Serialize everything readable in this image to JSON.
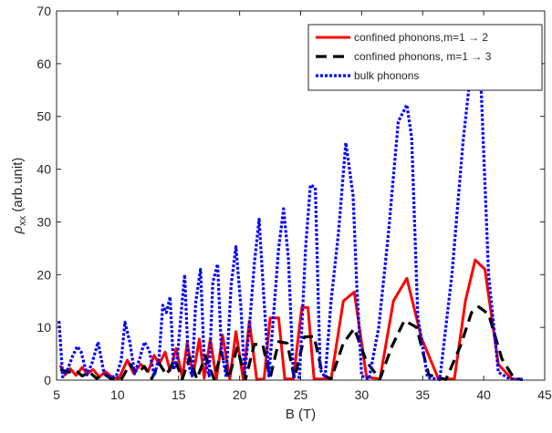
{
  "chart_data": {
    "type": "line",
    "xlabel": "B (T)",
    "ylabel": {
      "symbol": "ρ",
      "sub": "xx",
      "rest": " (arb.unit)"
    },
    "xlim": [
      5,
      45
    ],
    "ylim": [
      0,
      70
    ],
    "xticks": [
      5,
      10,
      15,
      20,
      25,
      30,
      35,
      40,
      45
    ],
    "yticks": [
      0,
      10,
      20,
      30,
      40,
      50,
      60,
      70
    ],
    "grid": false,
    "legend_position": "top-right",
    "series": [
      {
        "name": "confined phonons,m=1 → 2",
        "color": "#ff0000",
        "style": "solid",
        "x": [
          5.3,
          5.7,
          6.1,
          6.6,
          7.1,
          7.5,
          8.0,
          8.5,
          9.0,
          9.6,
          10.1,
          10.8,
          11.3,
          11.9,
          12.5,
          13.0,
          13.4,
          13.9,
          14.3,
          14.8,
          15.3,
          15.7,
          16.2,
          16.7,
          17.1,
          17.6,
          18.1,
          18.6,
          19.2,
          19.7,
          20.3,
          20.8,
          21.4,
          22.0,
          22.5,
          23.2,
          23.7,
          24.4,
          25.1,
          25.6,
          26.1,
          26.7,
          27.5,
          28.5,
          29.4,
          30.4,
          31.5,
          32.6,
          33.7,
          34.9,
          36.3,
          37.6,
          38.5,
          39.3,
          40.1,
          41.2,
          42.3,
          43.2
        ],
        "y": [
          2.8,
          1.0,
          2.2,
          0.9,
          2.4,
          1.2,
          2.0,
          0.6,
          1.6,
          0.5,
          0.3,
          3.8,
          1.3,
          3.0,
          1.6,
          4.7,
          3.0,
          5.3,
          1.8,
          6.0,
          0.5,
          7.0,
          1.0,
          7.8,
          0.4,
          7.8,
          0.2,
          8.5,
          0.2,
          9.2,
          0.1,
          11.2,
          0.1,
          0.2,
          11.8,
          11.8,
          0.2,
          0.2,
          13.8,
          13.8,
          0.2,
          0.2,
          0.2,
          15.0,
          16.7,
          0.6,
          0.2,
          15.0,
          19.3,
          8.0,
          0.2,
          0.2,
          15.0,
          22.8,
          21.0,
          3.0,
          0.2,
          0.1
        ]
      },
      {
        "name": "confined phonons, m=1 → 3",
        "color": "#000000",
        "style": "dashed",
        "x": [
          5.3,
          6.0,
          6.6,
          7.1,
          7.7,
          8.3,
          8.9,
          9.5,
          10.3,
          11.0,
          11.6,
          12.2,
          12.8,
          13.4,
          14.0,
          14.7,
          15.3,
          15.9,
          16.5,
          17.2,
          17.9,
          18.5,
          19.1,
          19.8,
          20.5,
          21.2,
          21.9,
          22.5,
          23.2,
          23.9,
          24.5,
          25.3,
          26.1,
          26.8,
          27.5,
          28.5,
          29.4,
          30.4,
          31.5,
          32.5,
          33.5,
          34.5,
          35.5,
          36.9,
          38.1,
          39.0,
          39.6,
          40.4,
          41.5,
          42.5,
          43.2
        ],
        "y": [
          2.0,
          1.5,
          1.8,
          0.8,
          1.5,
          0.3,
          1.1,
          0.2,
          0.1,
          3.0,
          1.3,
          2.6,
          0.3,
          3.2,
          1.0,
          3.9,
          0.2,
          4.3,
          0.2,
          4.6,
          0.2,
          5.3,
          0.3,
          6.1,
          0.3,
          6.8,
          6.7,
          0.4,
          7.3,
          7.0,
          0.3,
          8.2,
          8.3,
          1.0,
          0.2,
          7.0,
          9.8,
          3.5,
          0.2,
          6.5,
          11.3,
          10.0,
          1.0,
          0.1,
          6.5,
          12.8,
          13.9,
          12.5,
          4.0,
          0.3,
          0.1
        ]
      },
      {
        "name": "bulk phonons",
        "color": "#0000ff",
        "style": "dotted",
        "x": [
          5.2,
          5.5,
          5.9,
          6.3,
          6.7,
          7.0,
          7.5,
          7.9,
          8.4,
          8.9,
          9.4,
          9.9,
          10.3,
          10.6,
          11.0,
          11.4,
          11.8,
          12.2,
          12.6,
          13.0,
          13.4,
          13.7,
          14.0,
          14.3,
          14.6,
          14.9,
          15.2,
          15.5,
          15.8,
          16.1,
          16.4,
          16.8,
          17.1,
          17.5,
          17.8,
          18.2,
          18.5,
          18.9,
          19.3,
          19.7,
          20.1,
          20.4,
          20.8,
          21.2,
          21.6,
          22.0,
          22.4,
          22.8,
          23.2,
          23.6,
          24.0,
          24.4,
          24.9,
          25.4,
          25.8,
          26.2,
          26.6,
          27.0,
          27.5,
          28.1,
          28.7,
          29.3,
          29.6,
          30.0,
          30.6,
          31.4,
          32.2,
          33.0,
          33.7,
          34.1,
          34.6,
          35.4,
          36.4,
          37.4,
          38.3,
          39.0,
          39.4,
          39.8,
          40.4,
          41.2,
          42.1,
          43.0,
          43.2
        ],
        "y": [
          11.2,
          0.6,
          2.0,
          4.5,
          6.4,
          5.4,
          1.0,
          3.2,
          7.2,
          1.2,
          0.5,
          0.8,
          3.8,
          11.0,
          7.2,
          1.2,
          4.0,
          7.2,
          5.6,
          0.8,
          4.3,
          14.2,
          12.8,
          15.8,
          2.0,
          4.3,
          12.5,
          20.0,
          3.0,
          0.8,
          14.8,
          21.0,
          4.0,
          0.8,
          18.5,
          22.0,
          6.0,
          0.5,
          18.0,
          25.3,
          14.0,
          1.0,
          10.0,
          22.0,
          30.5,
          15.0,
          0.8,
          13.0,
          25.0,
          32.5,
          23.0,
          0.8,
          0.5,
          25.0,
          37.0,
          36.5,
          2.0,
          0.5,
          15.0,
          28.0,
          45.0,
          35.0,
          18.0,
          0.8,
          0.2,
          10.0,
          28.0,
          49.0,
          52.2,
          46.0,
          12.0,
          0.5,
          0.1,
          20.0,
          45.0,
          60.0,
          61.0,
          55.0,
          20.0,
          1.5,
          0.3,
          0.1,
          0.1
        ]
      }
    ]
  }
}
